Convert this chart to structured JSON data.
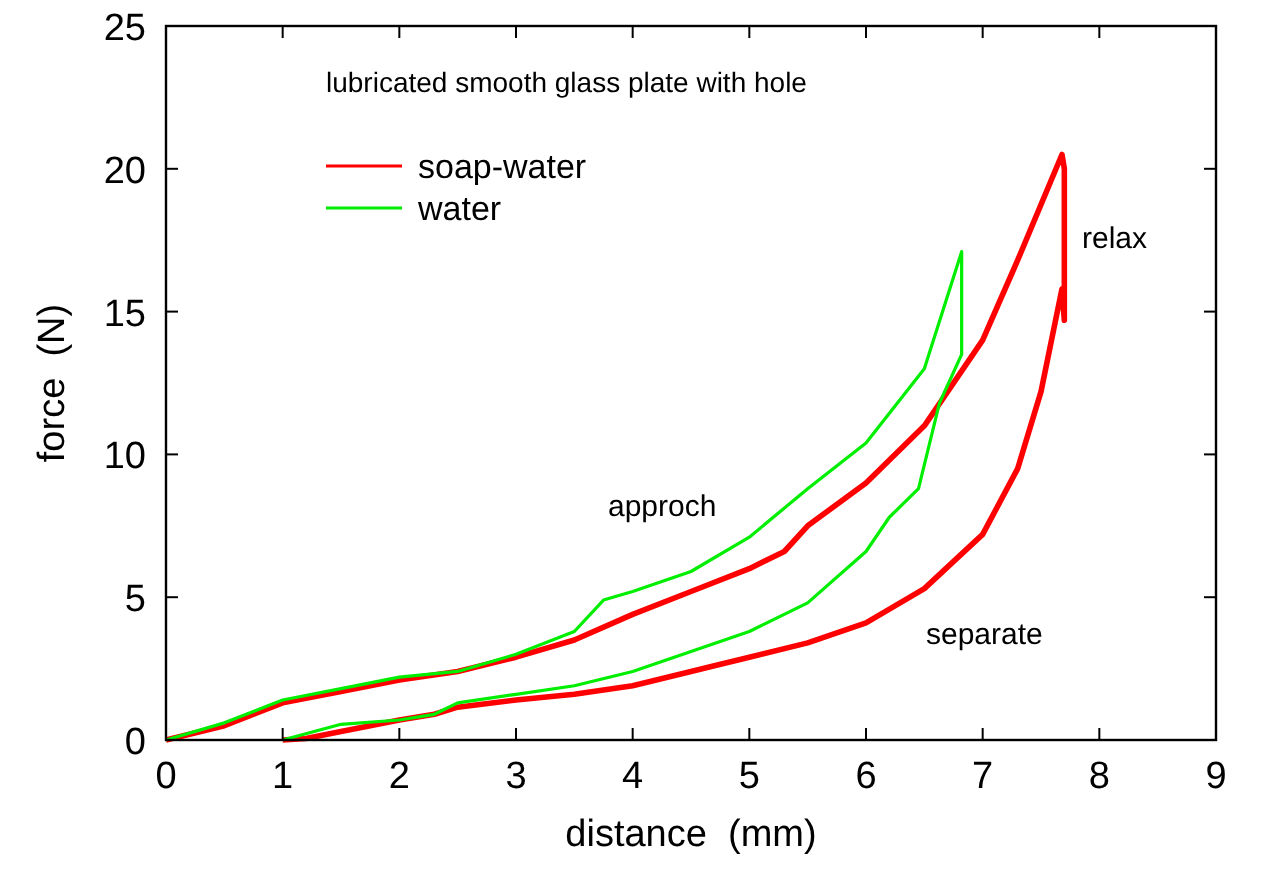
{
  "chart_data": {
    "type": "line",
    "title": "lubricated smooth glass plate with hole",
    "xlabel": "distance  (mm)",
    "ylabel": "force  (N)",
    "xlim": [
      0,
      9
    ],
    "ylim": [
      0,
      25
    ],
    "xticks": [
      0,
      1,
      2,
      3,
      4,
      5,
      6,
      7,
      8,
      9
    ],
    "yticks": [
      0,
      5,
      10,
      15,
      20,
      25
    ],
    "grid": false,
    "legend": "top left",
    "line_style": "solid",
    "annotations": [
      "approch",
      "relax",
      "separate"
    ],
    "series": [
      {
        "name": "soap-water",
        "color": "#ff0000",
        "x": [
          0,
          0.5,
          1,
          1.5,
          2,
          2.5,
          3,
          3.5,
          4,
          4.5,
          5,
          5.3,
          5.5,
          6,
          6.5,
          7,
          7.3,
          7.68,
          7.7,
          7.7,
          7.68,
          7.5,
          7.3,
          7,
          6.5,
          6,
          5.5,
          5,
          4.7,
          4.5,
          4,
          3.5,
          3,
          2.5,
          2.3,
          2,
          1.5,
          1.2,
          1
        ],
        "values": [
          0,
          0.5,
          1.3,
          1.7,
          2.1,
          2.4,
          2.9,
          3.5,
          4.4,
          5.2,
          6,
          6.6,
          7.5,
          9,
          11,
          14,
          16.8,
          20.5,
          20,
          14.7,
          15.8,
          12.2,
          9.5,
          7.2,
          5.3,
          4.1,
          3.4,
          2.9,
          2.6,
          2.4,
          1.9,
          1.6,
          1.4,
          1.15,
          0.9,
          0.7,
          0.3,
          0.05,
          0
        ]
      },
      {
        "name": "water",
        "color": "#00ee00",
        "x": [
          0,
          0.5,
          1,
          1.5,
          2,
          2.5,
          3,
          3.5,
          3.75,
          4,
          4.5,
          5,
          5.5,
          6,
          6.5,
          6.75,
          6.82,
          6.82,
          6.82,
          6.63,
          6.45,
          6.2,
          6,
          5.5,
          5,
          4.5,
          4,
          3.5,
          3,
          2.5,
          2.3,
          2,
          1.5,
          1
        ],
        "values": [
          0,
          0.6,
          1.4,
          1.8,
          2.2,
          2.4,
          3,
          3.8,
          4.9,
          5.2,
          5.9,
          7.1,
          8.8,
          10.4,
          13,
          16.2,
          17.1,
          16.5,
          13.5,
          11.8,
          8.8,
          7.8,
          6.6,
          4.8,
          3.8,
          3.1,
          2.4,
          1.9,
          1.6,
          1.3,
          0.9,
          0.7,
          0.55,
          0
        ]
      }
    ]
  }
}
